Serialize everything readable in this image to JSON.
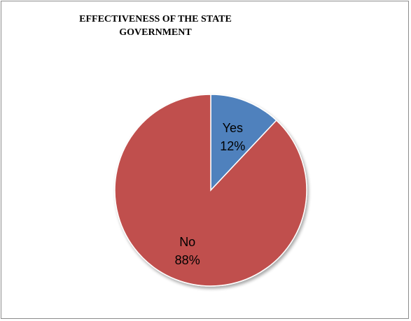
{
  "chart_data": {
    "type": "pie",
    "title": "EFFECTIVENESS OF THE STATE GOVERNMENT",
    "categories": [
      "Yes",
      "No"
    ],
    "values": [
      12,
      88
    ],
    "value_labels": [
      "12%",
      "88%"
    ],
    "colors": [
      "#4f81bd",
      "#c0504d"
    ],
    "legend": "none",
    "start_angle_deg": 0,
    "direction": "clockwise"
  }
}
